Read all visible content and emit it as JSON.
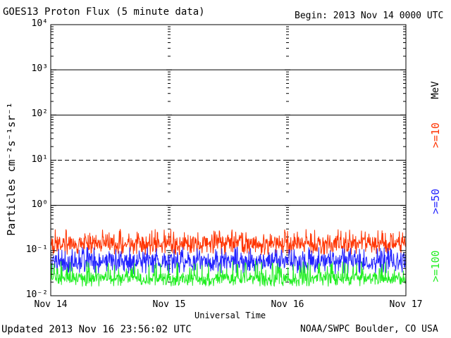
{
  "header": {
    "title": "GOES13 Proton Flux (5 minute data)",
    "begin": "Begin: 2013 Nov 14 0000 UTC"
  },
  "footer": {
    "updated": "Updated 2013 Nov 16 23:56:02 UTC",
    "credit": "NOAA/SWPC Boulder, CO USA"
  },
  "legend": {
    "unit": "MeV",
    "items": [
      {
        "label": ">=10",
        "color": "#ff3300"
      },
      {
        "label": ">=50",
        "color": "#2222ff"
      },
      {
        "label": ">=100",
        "color": "#22ee22"
      }
    ]
  },
  "chart_data": {
    "type": "line",
    "title": "GOES13 Proton Flux (5 minute data)",
    "xlabel": "Universal Time",
    "ylabel": "Particles cm⁻²s⁻¹sr⁻¹",
    "yscale": "log",
    "ylim": [
      0.01,
      10000
    ],
    "yticks": [
      "10⁻²",
      "10⁻¹",
      "10⁰",
      "10¹",
      "10²",
      "10³",
      "10⁴"
    ],
    "xticks": [
      "Nov 14",
      "Nov 15",
      "Nov 16",
      "Nov 17"
    ],
    "xlim_hours": [
      0,
      72
    ],
    "reference_lines": [
      {
        "value": 1,
        "style": "solid"
      },
      {
        "value": 10,
        "style": "dashed"
      },
      {
        "value": 100,
        "style": "solid"
      },
      {
        "value": 1000,
        "style": "solid"
      }
    ],
    "series": [
      {
        "name": ">=10 MeV",
        "color": "#ff3300",
        "typical": 0.15,
        "min": 0.08,
        "max": 0.3
      },
      {
        "name": ">=50 MeV",
        "color": "#2222ff",
        "typical": 0.06,
        "min": 0.03,
        "max": 0.12
      },
      {
        "name": ">=100 MeV",
        "color": "#22ee22",
        "typical": 0.025,
        "min": 0.016,
        "max": 0.06
      }
    ]
  }
}
